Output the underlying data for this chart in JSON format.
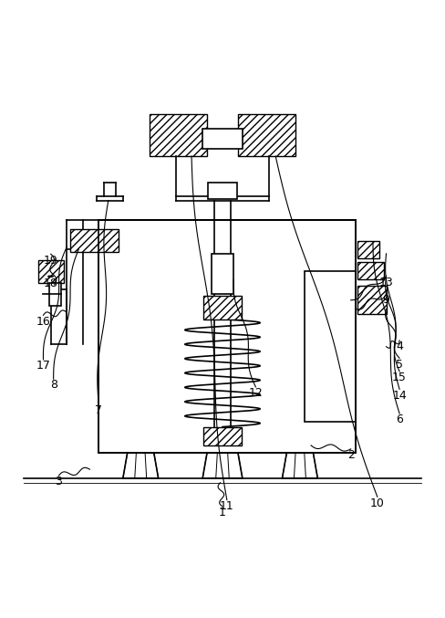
{
  "figure_width": 4.88,
  "figure_height": 6.77,
  "dpi": 100,
  "background_color": "#ffffff",
  "line_color": "#000000"
}
